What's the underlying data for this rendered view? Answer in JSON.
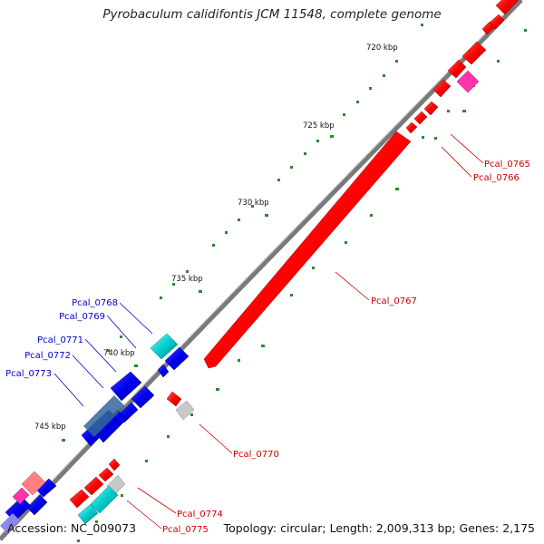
{
  "title": "Pyrobaculum calidifontis JCM 11548, complete genome",
  "footer": {
    "accession": "Accession: NC_009073",
    "summary": "Topology: circular; Length: 2,009,313 bp; Genes: 2,175"
  },
  "colors": {
    "backbone": "#8a8a8a",
    "forward_gene": "#ff0000",
    "reverse_gene": "#0000ee",
    "cyan_gene": "#00cccc",
    "gray_gene": "#bbbbbb",
    "pink_gene": "#ff33aa",
    "tick": "#228822",
    "label_forward": "#cc0000",
    "label_reverse": "#0000cc"
  },
  "ticks": [
    "720 kbp",
    "725 kbp",
    "730 kbp",
    "735 kbp",
    "740 kbp",
    "745 kbp"
  ],
  "gene_labels": {
    "forward": [
      "Pcal_0765",
      "Pcal_0766",
      "Pcal_0767",
      "Pcal_0770",
      "Pcal_0774",
      "Pcal_0775"
    ],
    "reverse": [
      "Pcal_0768",
      "Pcal_0769",
      "Pcal_0771",
      "Pcal_0772",
      "Pcal_0773"
    ]
  }
}
